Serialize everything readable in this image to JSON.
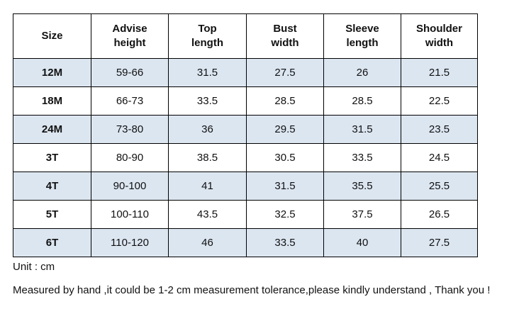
{
  "table": {
    "header": [
      "Size",
      "Advise height",
      "Top length",
      "Bust width",
      "Sleeve length",
      "Shoulder width"
    ],
    "rows": [
      [
        "12M",
        "59-66",
        "31.5",
        "27.5",
        "26",
        "21.5"
      ],
      [
        "18M",
        "66-73",
        "33.5",
        "28.5",
        "28.5",
        "22.5"
      ],
      [
        "24M",
        "73-80",
        "36",
        "29.5",
        "31.5",
        "23.5"
      ],
      [
        "3T",
        "80-90",
        "38.5",
        "30.5",
        "33.5",
        "24.5"
      ],
      [
        "4T",
        "90-100",
        "41",
        "31.5",
        "35.5",
        "25.5"
      ],
      [
        "5T",
        "100-110",
        "43.5",
        "32.5",
        "37.5",
        "26.5"
      ],
      [
        "6T",
        "110-120",
        "46",
        "33.5",
        "40",
        "27.5"
      ]
    ]
  },
  "notes": {
    "unit": "Unit : cm",
    "tolerance": "Measured by hand ,it could be 1-2 cm measurement tolerance,please kindly understand , Thank you !"
  }
}
